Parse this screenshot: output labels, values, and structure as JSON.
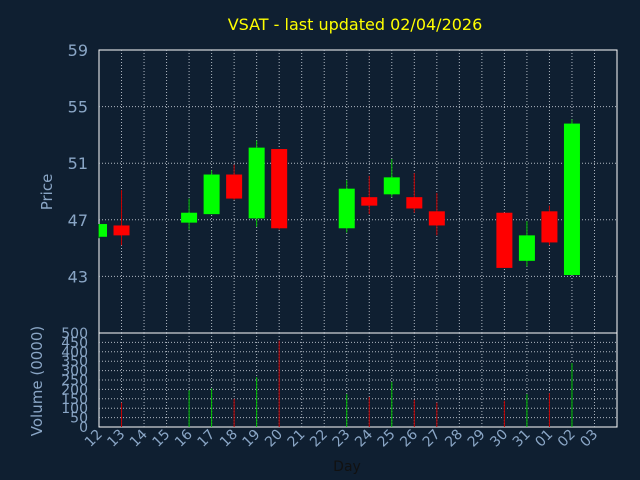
{
  "chart_data": {
    "type": "candlestick",
    "title": "VSAT - last updated 02/04/2026",
    "xlabel": "Day",
    "price_axis": {
      "label": "Price",
      "ylim": [
        39,
        59
      ],
      "ticks": [
        59,
        55,
        51,
        47,
        43
      ],
      "grid": true
    },
    "volume_axis": {
      "label": "Volume (0000)",
      "ylim": [
        0,
        500
      ],
      "ticks": [
        500,
        450,
        400,
        350,
        300,
        250,
        200,
        150,
        100,
        50,
        0
      ],
      "grid": true
    },
    "x_ticks": [
      "12",
      "13",
      "14",
      "15",
      "16",
      "17",
      "18",
      "19",
      "20",
      "21",
      "22",
      "23",
      "24",
      "25",
      "26",
      "27",
      "28",
      "29",
      "30",
      "31",
      "01",
      "02",
      "03"
    ],
    "candles": [
      {
        "day": "12",
        "open": 45.8,
        "high": 46.7,
        "low": 45.7,
        "close": 46.7,
        "volume": 0
      },
      {
        "day": "13",
        "open": 46.6,
        "high": 49.1,
        "low": 45.2,
        "close": 45.9,
        "volume": 130
      },
      {
        "day": "16",
        "open": 46.8,
        "high": 48.5,
        "low": 46.3,
        "close": 47.5,
        "volume": 195
      },
      {
        "day": "17",
        "open": 47.4,
        "high": 50.5,
        "low": 47.4,
        "close": 50.2,
        "volume": 205
      },
      {
        "day": "18",
        "open": 50.2,
        "high": 50.9,
        "low": 48.4,
        "close": 48.5,
        "volume": 150
      },
      {
        "day": "19",
        "open": 47.1,
        "high": 52.6,
        "low": 46.5,
        "close": 52.1,
        "volume": 265
      },
      {
        "day": "20",
        "open": 52.0,
        "high": 52.0,
        "low": 46.3,
        "close": 46.4,
        "volume": 460
      },
      {
        "day": "23",
        "open": 46.4,
        "high": 49.8,
        "low": 46.1,
        "close": 49.2,
        "volume": 175
      },
      {
        "day": "24",
        "open": 48.6,
        "high": 50.1,
        "low": 47.4,
        "close": 48.0,
        "volume": 160
      },
      {
        "day": "25",
        "open": 48.8,
        "high": 51.3,
        "low": 48.6,
        "close": 50.0,
        "volume": 240
      },
      {
        "day": "26",
        "open": 48.6,
        "high": 50.3,
        "low": 47.5,
        "close": 47.8,
        "volume": 145
      },
      {
        "day": "27",
        "open": 47.6,
        "high": 48.9,
        "low": 45.9,
        "close": 46.6,
        "volume": 130
      },
      {
        "day": "30",
        "open": 47.5,
        "high": 47.5,
        "low": 43.6,
        "close": 43.6,
        "volume": 140
      },
      {
        "day": "31",
        "open": 44.1,
        "high": 46.9,
        "low": 43.7,
        "close": 45.9,
        "volume": 175
      },
      {
        "day": "01",
        "open": 47.6,
        "high": 48.0,
        "low": 45.2,
        "close": 45.4,
        "volume": 180
      },
      {
        "day": "02",
        "open": 43.1,
        "high": 54.1,
        "low": 43.1,
        "close": 53.8,
        "volume": 340
      }
    ],
    "colors": {
      "background": "#0f1f31",
      "plot_border": "#ffffff",
      "grid": "#b0b8c2",
      "up": "#00ff00",
      "down": "#ff0000",
      "wick_up": "#00c400",
      "wick_down": "#c40000",
      "axis_text": "#8aa6c6",
      "title": "#ffff00"
    }
  }
}
